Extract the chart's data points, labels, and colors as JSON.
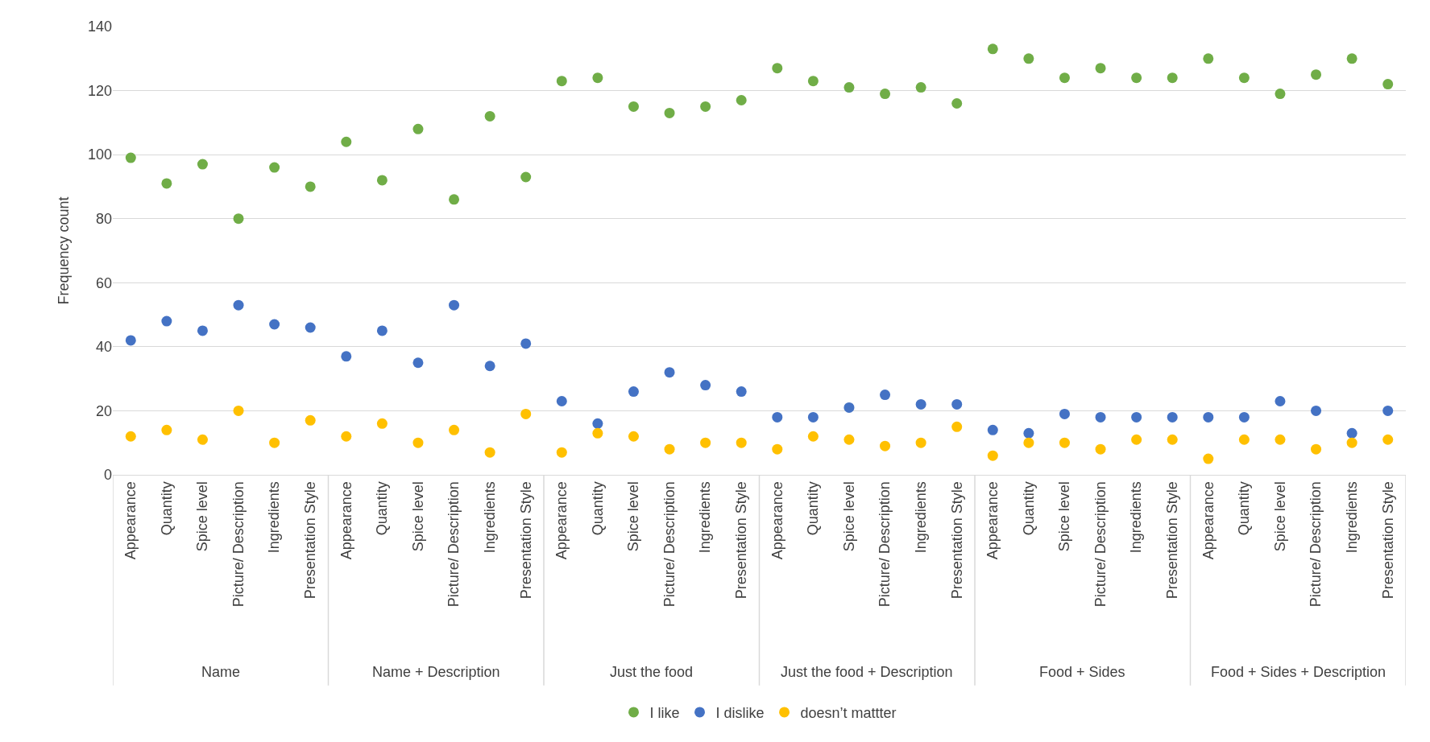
{
  "chart_data": {
    "type": "scatter",
    "ylabel": "Frequency count",
    "categories": [
      "Appearance",
      "Quantity",
      "Spice level",
      "Picture/ Description",
      "Ingredients",
      "Presentation Style",
      "Appearance",
      "Quantity",
      "Spice level",
      "Picture/ Description",
      "Ingredients",
      "Presentation Style",
      "Appearance",
      "Quantity",
      "Spice level",
      "Picture/ Description",
      "Ingredients",
      "Presentation Style",
      "Appearance",
      "Quantity",
      "Spice level",
      "Picture/ Description",
      "Ingredients",
      "Presentation Style",
      "Appearance",
      "Quantity",
      "Spice level",
      "Picture/ Description",
      "Ingredients",
      "Presentation Style",
      "Appearance",
      "Quantity",
      "Spice level",
      "Picture/ Description",
      "Ingredients",
      "Presentation Style"
    ],
    "annotations": [
      "Name",
      "Name + Description",
      "Just the food",
      "Just the food + Description",
      "Food + Sides",
      "Food + Sides + Description"
    ],
    "series": [
      {
        "name": "I like",
        "color": "#70ad47",
        "values": [
          99,
          91,
          97,
          80,
          96,
          90,
          104,
          92,
          108,
          86,
          112,
          93,
          123,
          124,
          115,
          113,
          115,
          117,
          127,
          123,
          121,
          119,
          121,
          116,
          133,
          130,
          124,
          127,
          124,
          124,
          130,
          124,
          119,
          125,
          130,
          122
        ]
      },
      {
        "name": "I dislike",
        "color": "#4472c4",
        "values": [
          42,
          48,
          45,
          53,
          47,
          46,
          37,
          45,
          35,
          53,
          34,
          41,
          23,
          16,
          26,
          32,
          28,
          26,
          18,
          18,
          21,
          25,
          22,
          22,
          14,
          13,
          19,
          18,
          18,
          18,
          18,
          18,
          23,
          20,
          13,
          20
        ]
      },
      {
        "name": "doesn’t mattter",
        "color": "#ffc000",
        "values": [
          12,
          14,
          11,
          20,
          10,
          17,
          12,
          16,
          10,
          14,
          7,
          19,
          7,
          13,
          12,
          8,
          10,
          10,
          8,
          12,
          11,
          9,
          10,
          15,
          6,
          10,
          10,
          8,
          11,
          11,
          5,
          11,
          11,
          8,
          10,
          11
        ]
      }
    ],
    "ylim": [
      0,
      140
    ],
    "yticks": [
      0,
      20,
      40,
      60,
      80,
      100,
      120,
      140
    ],
    "grid": "y",
    "legend": "bottom",
    "marker": "circle"
  }
}
